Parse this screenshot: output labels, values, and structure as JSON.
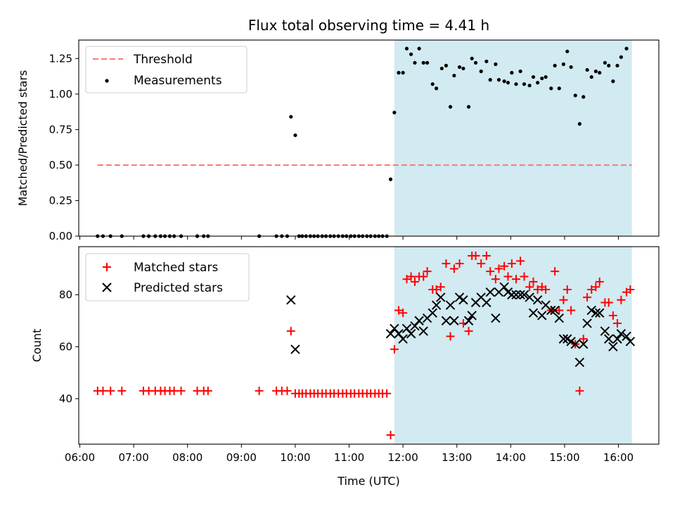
{
  "chart_data": [
    {
      "type": "scatter",
      "title": "Flux total observing time = 4.41 h",
      "ylabel": "Matched/Predicted stars",
      "xlabel": "",
      "x_unit": "hours (UTC)",
      "xlim": [
        5.98,
        16.75
      ],
      "ylim": [
        0,
        1.38
      ],
      "yticks": [
        0.0,
        0.25,
        0.5,
        0.75,
        1.0,
        1.25
      ],
      "yticklabels": [
        "0.00",
        "0.25",
        "0.50",
        "0.75",
        "1.00",
        "1.25"
      ],
      "legend_position": "upper-left",
      "shaded_region": {
        "x_start": 11.84,
        "x_end": 16.25,
        "color": "#add8e6"
      },
      "threshold": {
        "name": "Threshold",
        "y": 0.5,
        "x_start": 6.33,
        "x_end": 16.25,
        "color": "#ff7b7b",
        "style": "dashed"
      },
      "series": [
        {
          "name": "Measurements",
          "marker": "dot",
          "color": "#000000",
          "points": [
            [
              6.33,
              0
            ],
            [
              6.43,
              0
            ],
            [
              6.57,
              0
            ],
            [
              6.78,
              0
            ],
            [
              7.18,
              0
            ],
            [
              7.28,
              0
            ],
            [
              7.4,
              0
            ],
            [
              7.5,
              0
            ],
            [
              7.58,
              0
            ],
            [
              7.67,
              0
            ],
            [
              7.75,
              0
            ],
            [
              7.88,
              0
            ],
            [
              8.18,
              0
            ],
            [
              8.3,
              0
            ],
            [
              8.38,
              0
            ],
            [
              9.33,
              0
            ],
            [
              9.65,
              0
            ],
            [
              9.75,
              0
            ],
            [
              9.85,
              0
            ],
            [
              9.92,
              0.84
            ],
            [
              10.0,
              0.71
            ],
            [
              10.07,
              0
            ],
            [
              10.13,
              0
            ],
            [
              10.2,
              0
            ],
            [
              10.28,
              0
            ],
            [
              10.35,
              0
            ],
            [
              10.42,
              0
            ],
            [
              10.5,
              0
            ],
            [
              10.57,
              0
            ],
            [
              10.65,
              0
            ],
            [
              10.72,
              0
            ],
            [
              10.8,
              0
            ],
            [
              10.88,
              0
            ],
            [
              10.95,
              0
            ],
            [
              11.03,
              0
            ],
            [
              11.1,
              0
            ],
            [
              11.18,
              0
            ],
            [
              11.25,
              0
            ],
            [
              11.33,
              0
            ],
            [
              11.4,
              0
            ],
            [
              11.48,
              0
            ],
            [
              11.55,
              0
            ],
            [
              11.62,
              0
            ],
            [
              11.7,
              0
            ],
            [
              11.77,
              0.4
            ],
            [
              11.84,
              0.87
            ],
            [
              11.92,
              1.15
            ],
            [
              12.0,
              1.15
            ],
            [
              12.07,
              1.32
            ],
            [
              12.15,
              1.28
            ],
            [
              12.22,
              1.22
            ],
            [
              12.3,
              1.32
            ],
            [
              12.38,
              1.22
            ],
            [
              12.45,
              1.22
            ],
            [
              12.55,
              1.07
            ],
            [
              12.62,
              1.04
            ],
            [
              12.72,
              1.18
            ],
            [
              12.8,
              1.2
            ],
            [
              12.88,
              0.91
            ],
            [
              12.95,
              1.13
            ],
            [
              13.05,
              1.19
            ],
            [
              13.12,
              1.18
            ],
            [
              13.22,
              0.91
            ],
            [
              13.28,
              1.25
            ],
            [
              13.35,
              1.22
            ],
            [
              13.45,
              1.16
            ],
            [
              13.55,
              1.23
            ],
            [
              13.62,
              1.1
            ],
            [
              13.72,
              1.21
            ],
            [
              13.78,
              1.1
            ],
            [
              13.88,
              1.09
            ],
            [
              13.95,
              1.08
            ],
            [
              14.02,
              1.15
            ],
            [
              14.1,
              1.07
            ],
            [
              14.18,
              1.16
            ],
            [
              14.25,
              1.07
            ],
            [
              14.35,
              1.06
            ],
            [
              14.42,
              1.12
            ],
            [
              14.5,
              1.08
            ],
            [
              14.58,
              1.11
            ],
            [
              14.65,
              1.12
            ],
            [
              14.75,
              1.04
            ],
            [
              14.82,
              1.2
            ],
            [
              14.9,
              1.04
            ],
            [
              14.98,
              1.21
            ],
            [
              15.05,
              1.3
            ],
            [
              15.12,
              1.19
            ],
            [
              15.2,
              0.99
            ],
            [
              15.28,
              0.79
            ],
            [
              15.35,
              0.98
            ],
            [
              15.42,
              1.17
            ],
            [
              15.5,
              1.12
            ],
            [
              15.58,
              1.16
            ],
            [
              15.65,
              1.15
            ],
            [
              15.75,
              1.22
            ],
            [
              15.82,
              1.2
            ],
            [
              15.9,
              1.09
            ],
            [
              15.98,
              1.2
            ],
            [
              16.05,
              1.26
            ],
            [
              16.15,
              1.32
            ]
          ]
        }
      ]
    },
    {
      "type": "scatter",
      "title": "",
      "ylabel": "Count",
      "xlabel": "Time (UTC)",
      "x_unit": "hours (UTC)",
      "xlim": [
        5.98,
        16.75
      ],
      "ylim": [
        22.5,
        98.5
      ],
      "yticks": [
        40,
        60,
        80
      ],
      "yticklabels": [
        "40",
        "60",
        "80"
      ],
      "xticks": [
        6,
        7,
        8,
        9,
        10,
        11,
        12,
        13,
        14,
        15,
        16
      ],
      "xticklabels": [
        "06:00",
        "07:00",
        "08:00",
        "09:00",
        "10:00",
        "11:00",
        "12:00",
        "13:00",
        "14:00",
        "15:00",
        "16:00"
      ],
      "legend_position": "upper-left",
      "shaded_region": {
        "x_start": 11.84,
        "x_end": 16.25,
        "color": "#add8e6"
      },
      "series": [
        {
          "name": "Matched stars",
          "marker": "plus",
          "color": "#ff0000",
          "points": [
            [
              6.33,
              43
            ],
            [
              6.43,
              43
            ],
            [
              6.57,
              43
            ],
            [
              6.78,
              43
            ],
            [
              7.18,
              43
            ],
            [
              7.28,
              43
            ],
            [
              7.4,
              43
            ],
            [
              7.5,
              43
            ],
            [
              7.58,
              43
            ],
            [
              7.67,
              43
            ],
            [
              7.75,
              43
            ],
            [
              7.88,
              43
            ],
            [
              8.18,
              43
            ],
            [
              8.3,
              43
            ],
            [
              8.38,
              43
            ],
            [
              9.33,
              43
            ],
            [
              9.65,
              43
            ],
            [
              9.75,
              43
            ],
            [
              9.85,
              43
            ],
            [
              9.92,
              66
            ],
            [
              10.0,
              42
            ],
            [
              10.07,
              42
            ],
            [
              10.13,
              42
            ],
            [
              10.2,
              42
            ],
            [
              10.28,
              42
            ],
            [
              10.35,
              42
            ],
            [
              10.42,
              42
            ],
            [
              10.5,
              42
            ],
            [
              10.57,
              42
            ],
            [
              10.65,
              42
            ],
            [
              10.72,
              42
            ],
            [
              10.8,
              42
            ],
            [
              10.88,
              42
            ],
            [
              10.95,
              42
            ],
            [
              11.03,
              42
            ],
            [
              11.1,
              42
            ],
            [
              11.18,
              42
            ],
            [
              11.25,
              42
            ],
            [
              11.33,
              42
            ],
            [
              11.4,
              42
            ],
            [
              11.48,
              42
            ],
            [
              11.55,
              42
            ],
            [
              11.62,
              42
            ],
            [
              11.7,
              42
            ],
            [
              11.77,
              26
            ],
            [
              11.84,
              59
            ],
            [
              11.92,
              74
            ],
            [
              12.0,
              73
            ],
            [
              12.07,
              86
            ],
            [
              12.15,
              87
            ],
            [
              12.22,
              85
            ],
            [
              12.3,
              87
            ],
            [
              12.38,
              87
            ],
            [
              12.45,
              89
            ],
            [
              12.55,
              82
            ],
            [
              12.62,
              82
            ],
            [
              12.7,
              83
            ],
            [
              12.8,
              92
            ],
            [
              12.88,
              64
            ],
            [
              12.95,
              90
            ],
            [
              13.05,
              92
            ],
            [
              13.12,
              69
            ],
            [
              13.22,
              66
            ],
            [
              13.28,
              95
            ],
            [
              13.35,
              95
            ],
            [
              13.45,
              92
            ],
            [
              13.55,
              95
            ],
            [
              13.62,
              89
            ],
            [
              13.72,
              86
            ],
            [
              13.78,
              90
            ],
            [
              13.88,
              91
            ],
            [
              13.95,
              87
            ],
            [
              14.02,
              92
            ],
            [
              14.1,
              86
            ],
            [
              14.18,
              93
            ],
            [
              14.25,
              87
            ],
            [
              14.35,
              83
            ],
            [
              14.42,
              85
            ],
            [
              14.5,
              82
            ],
            [
              14.58,
              83
            ],
            [
              14.65,
              82
            ],
            [
              14.75,
              74
            ],
            [
              14.82,
              89
            ],
            [
              14.9,
              74
            ],
            [
              14.98,
              78
            ],
            [
              15.05,
              82
            ],
            [
              15.12,
              74
            ],
            [
              15.2,
              61
            ],
            [
              15.28,
              43
            ],
            [
              15.35,
              63
            ],
            [
              15.42,
              79
            ],
            [
              15.5,
              82
            ],
            [
              15.58,
              83
            ],
            [
              15.65,
              85
            ],
            [
              15.75,
              77
            ],
            [
              15.82,
              77
            ],
            [
              15.9,
              72
            ],
            [
              15.98,
              69
            ],
            [
              16.05,
              78
            ],
            [
              16.15,
              81
            ],
            [
              16.22,
              82
            ]
          ]
        },
        {
          "name": "Predicted stars",
          "marker": "x",
          "color": "#000000",
          "points": [
            [
              9.92,
              78
            ],
            [
              10.0,
              59
            ],
            [
              11.77,
              65
            ],
            [
              11.84,
              67
            ],
            [
              11.92,
              65
            ],
            [
              12.0,
              63
            ],
            [
              12.07,
              67
            ],
            [
              12.15,
              65
            ],
            [
              12.22,
              68
            ],
            [
              12.3,
              70
            ],
            [
              12.38,
              66
            ],
            [
              12.45,
              71
            ],
            [
              12.55,
              73
            ],
            [
              12.62,
              76
            ],
            [
              12.7,
              79
            ],
            [
              12.8,
              70
            ],
            [
              12.88,
              76
            ],
            [
              12.95,
              70
            ],
            [
              13.05,
              79
            ],
            [
              13.12,
              78
            ],
            [
              13.22,
              70
            ],
            [
              13.28,
              72
            ],
            [
              13.35,
              77
            ],
            [
              13.45,
              79
            ],
            [
              13.55,
              77
            ],
            [
              13.62,
              81
            ],
            [
              13.72,
              71
            ],
            [
              13.78,
              81
            ],
            [
              13.88,
              83
            ],
            [
              13.95,
              81
            ],
            [
              14.02,
              80
            ],
            [
              14.1,
              80
            ],
            [
              14.18,
              80
            ],
            [
              14.25,
              80
            ],
            [
              14.35,
              79
            ],
            [
              14.42,
              73
            ],
            [
              14.5,
              78
            ],
            [
              14.58,
              72
            ],
            [
              14.65,
              76
            ],
            [
              14.75,
              74
            ],
            [
              14.82,
              74
            ],
            [
              14.9,
              71
            ],
            [
              14.98,
              63
            ],
            [
              15.05,
              63
            ],
            [
              15.12,
              62
            ],
            [
              15.2,
              61
            ],
            [
              15.28,
              54
            ],
            [
              15.35,
              61
            ],
            [
              15.42,
              69
            ],
            [
              15.5,
              74
            ],
            [
              15.58,
              73
            ],
            [
              15.65,
              73
            ],
            [
              15.75,
              66
            ],
            [
              15.82,
              63
            ],
            [
              15.9,
              60
            ],
            [
              15.98,
              63
            ],
            [
              16.05,
              65
            ],
            [
              16.15,
              64
            ],
            [
              16.22,
              62
            ]
          ]
        }
      ]
    }
  ]
}
